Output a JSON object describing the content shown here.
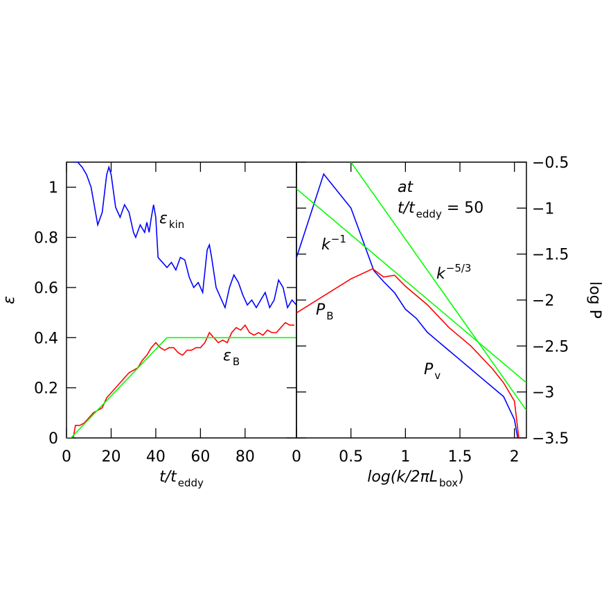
{
  "chart_data": [
    {
      "type": "line",
      "xlabel": {
        "text": "t/t",
        "sub": "eddy"
      },
      "ylabel": "ε",
      "xlim": [
        0,
        103
      ],
      "ylim": [
        0,
        1.1
      ],
      "xticks": [
        0,
        20,
        40,
        60,
        80
      ],
      "yticks": [
        0,
        0.2,
        0.4,
        0.6,
        0.8,
        1
      ],
      "series": [
        {
          "color": "#0000ff",
          "x": [
            3,
            5,
            7,
            9,
            11,
            13,
            14,
            16,
            18,
            19,
            20,
            22,
            24,
            26,
            28,
            30,
            31,
            33,
            35,
            36,
            37,
            38,
            39,
            40,
            41,
            43,
            45,
            47,
            49,
            51,
            53,
            55,
            57,
            59,
            61,
            63,
            64,
            65,
            67,
            69,
            71,
            73,
            75,
            77,
            79,
            81,
            83,
            85,
            87,
            89,
            91,
            93,
            95,
            97,
            99,
            101,
            103
          ],
          "values": [
            1.1,
            1.1,
            1.08,
            1.05,
            1.0,
            0.9,
            0.85,
            0.9,
            1.05,
            1.08,
            1.05,
            0.92,
            0.88,
            0.93,
            0.9,
            0.82,
            0.8,
            0.85,
            0.82,
            0.86,
            0.82,
            0.88,
            0.93,
            0.88,
            0.72,
            0.7,
            0.68,
            0.7,
            0.67,
            0.72,
            0.71,
            0.64,
            0.6,
            0.62,
            0.58,
            0.75,
            0.77,
            0.72,
            0.6,
            0.56,
            0.52,
            0.6,
            0.65,
            0.62,
            0.57,
            0.53,
            0.55,
            0.52,
            0.55,
            0.58,
            0.52,
            0.55,
            0.63,
            0.6,
            0.52,
            0.55,
            0.53
          ]
        },
        {
          "color": "#ff0000",
          "x": [
            3,
            4,
            6,
            8,
            10,
            12,
            14,
            16,
            18,
            20,
            22,
            24,
            26,
            28,
            30,
            32,
            34,
            36,
            38,
            40,
            42,
            44,
            46,
            48,
            50,
            52,
            54,
            56,
            58,
            60,
            62,
            64,
            66,
            68,
            70,
            72,
            74,
            76,
            78,
            80,
            82,
            84,
            86,
            88,
            90,
            92,
            94,
            96,
            98,
            100,
            102
          ],
          "values": [
            0,
            0.05,
            0.05,
            0.06,
            0.08,
            0.1,
            0.11,
            0.12,
            0.16,
            0.18,
            0.2,
            0.22,
            0.24,
            0.26,
            0.27,
            0.28,
            0.31,
            0.33,
            0.36,
            0.38,
            0.36,
            0.35,
            0.36,
            0.36,
            0.34,
            0.33,
            0.35,
            0.35,
            0.36,
            0.36,
            0.38,
            0.42,
            0.4,
            0.38,
            0.39,
            0.38,
            0.42,
            0.44,
            0.43,
            0.45,
            0.42,
            0.41,
            0.42,
            0.41,
            0.43,
            0.42,
            0.42,
            0.44,
            0.46,
            0.45,
            0.45
          ]
        },
        {
          "color": "#00ff00",
          "x": [
            0,
            2,
            45,
            103
          ],
          "values": [
            0,
            0,
            0.4,
            0.4
          ]
        }
      ],
      "annotations": [
        {
          "text": "ε",
          "sub": "kin",
          "color": "#0000ff"
        },
        {
          "text": "ε",
          "sub": "B",
          "color": "#ff0000"
        }
      ]
    },
    {
      "type": "line",
      "xlabel": {
        "text": "log(k/2πL",
        "sub": "box",
        "tail": ")"
      },
      "ylabel": "log P",
      "xlim": [
        0,
        2.11
      ],
      "ylim": [
        -3.5,
        -0.5
      ],
      "xticks": [
        0,
        0.5,
        1,
        1.5,
        2
      ],
      "yticks": [
        {
          "value": -3.5,
          "label": "−3.5"
        },
        {
          "value": -3,
          "label": "−3"
        },
        {
          "value": -2.5,
          "label": "−2.5"
        },
        {
          "value": -2,
          "label": "−2"
        },
        {
          "value": -1.5,
          "label": "−1.5"
        },
        {
          "value": -1,
          "label": "−1"
        },
        {
          "value": -0.5,
          "label": "−0.5"
        }
      ],
      "series": [
        {
          "color": "#0000ff",
          "x": [
            0,
            0.25,
            0.5,
            0.71,
            0.8,
            0.9,
            1.0,
            1.1,
            1.2,
            1.3,
            1.4,
            1.5,
            1.6,
            1.7,
            1.8,
            1.9,
            1.96,
            2.0,
            2.03
          ],
          "values": [
            -1.54,
            -0.63,
            -1.0,
            -1.68,
            -1.8,
            -1.92,
            -2.1,
            -2.2,
            -2.35,
            -2.45,
            -2.55,
            -2.65,
            -2.75,
            -2.85,
            -2.95,
            -3.05,
            -3.2,
            -3.3,
            -3.5
          ]
        },
        {
          "color": "#ff0000",
          "x": [
            0,
            0.5,
            0.7,
            0.8,
            0.9,
            1.0,
            1.2,
            1.4,
            1.6,
            1.8,
            1.9,
            2.0,
            2.04
          ],
          "values": [
            -2.14,
            -1.77,
            -1.66,
            -1.75,
            -1.73,
            -1.85,
            -2.05,
            -2.3,
            -2.5,
            -2.75,
            -2.9,
            -3.1,
            -3.5
          ]
        },
        {
          "color": "#00ff00",
          "x": [
            0,
            2.11
          ],
          "values": [
            -0.79,
            -2.9
          ]
        },
        {
          "color": "#00ff00",
          "x": [
            0.5,
            2.11
          ],
          "values": [
            -0.5,
            -3.2
          ]
        }
      ],
      "annotations": [
        {
          "text": "at"
        },
        {
          "text": "t/t",
          "sub": "eddy",
          "tail": " = 50"
        },
        {
          "text": "P",
          "sub": "B",
          "color": "#ff0000"
        },
        {
          "text": "P",
          "sub": "v",
          "color": "#0000ff"
        },
        {
          "text": "k",
          "sup": "−1",
          "color": "#00ff00"
        },
        {
          "text": "k",
          "sup": "−5/3",
          "color": "#00ff00"
        }
      ]
    }
  ]
}
